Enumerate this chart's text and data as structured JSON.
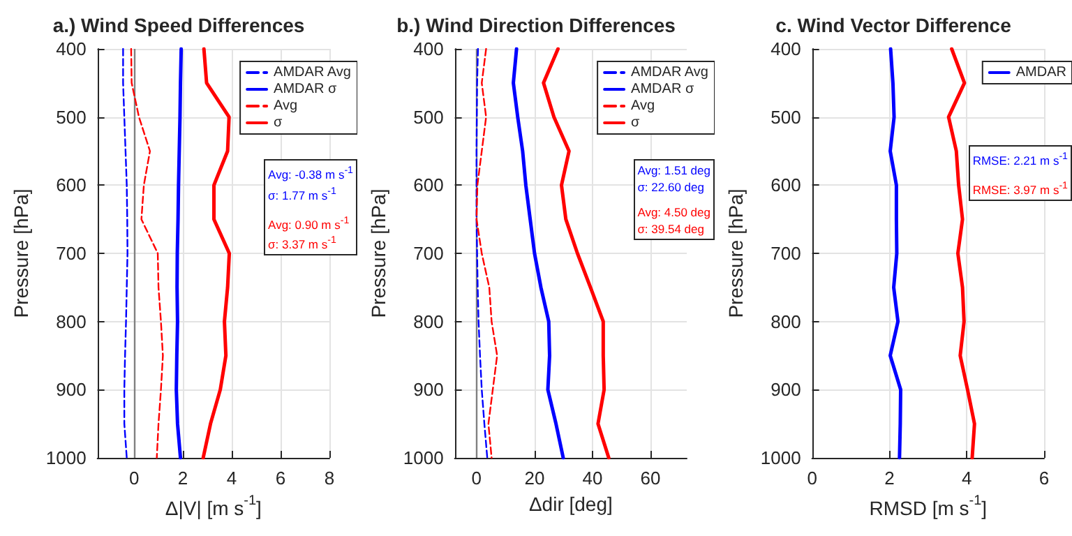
{
  "chart_data": [
    {
      "type": "line",
      "title": "a.) Wind Speed Differences",
      "xlabel": "Δ|V| [m s$^{-1}$]",
      "ylabel": "Pressure [hPa]",
      "xlim": [
        -1.5,
        8
      ],
      "xticks": [
        0,
        2,
        4,
        6,
        8
      ],
      "ylim": [
        1000,
        400
      ],
      "yticks": [
        400,
        500,
        600,
        700,
        800,
        900,
        1000
      ],
      "grid": true,
      "legend": "top right",
      "marker": "none",
      "ref_lines": [
        {
          "axis": "x",
          "value": 0,
          "color": "#808080"
        }
      ],
      "annotations": [
        "Avg: -0.38 m s$^{-1}$",
        "σ: 1.77 m s$^{-1}$",
        "Avg: 0.90 m s$^{-1}$",
        "σ: 3.37 m s$^{-1}$"
      ],
      "series": [
        {
          "name": "AMDAR Avg",
          "color": "#0000ff",
          "line_style": "dashed",
          "x": [
            -0.45,
            -0.45,
            -0.4,
            -0.35,
            -0.3,
            -0.28,
            -0.27,
            -0.3,
            -0.33,
            -0.37,
            -0.4,
            -0.4,
            -0.3
          ],
          "values": [
            400,
            450,
            500,
            550,
            600,
            650,
            700,
            750,
            800,
            850,
            900,
            950,
            1000
          ]
        },
        {
          "name": "AMDAR σ",
          "color": "#0000ff",
          "line_style": "solid",
          "x": [
            1.93,
            1.9,
            1.88,
            1.85,
            1.82,
            1.8,
            1.77,
            1.76,
            1.78,
            1.75,
            1.73,
            1.78,
            1.9
          ],
          "values": [
            400,
            450,
            500,
            550,
            600,
            650,
            700,
            750,
            800,
            850,
            900,
            950,
            1000
          ]
        },
        {
          "name": "Avg",
          "color": "#ff0000",
          "line_style": "dashed",
          "x": [
            -0.12,
            -0.1,
            0.2,
            0.65,
            0.4,
            0.3,
            0.97,
            1.0,
            1.1,
            1.18,
            1.1,
            1.0,
            0.93
          ],
          "values": [
            400,
            450,
            500,
            550,
            600,
            650,
            700,
            750,
            800,
            850,
            900,
            950,
            1000
          ]
        },
        {
          "name": "σ",
          "color": "#ff0000",
          "line_style": "solid",
          "x": [
            2.86,
            2.97,
            3.89,
            3.83,
            3.27,
            3.27,
            3.9,
            3.83,
            3.7,
            3.76,
            3.53,
            3.13,
            2.83
          ],
          "values": [
            400,
            450,
            500,
            550,
            600,
            650,
            700,
            750,
            800,
            850,
            900,
            950,
            1000
          ]
        }
      ]
    },
    {
      "type": "line",
      "title": "b.) Wind Direction Differences",
      "xlabel": "Δdir [deg]",
      "ylabel": "Pressure [hPa]",
      "xlim": [
        -7.5,
        72.5
      ],
      "xticks": [
        0,
        20,
        40,
        60
      ],
      "ylim": [
        1000,
        400
      ],
      "yticks": [
        400,
        500,
        600,
        700,
        800,
        900,
        1000
      ],
      "grid": true,
      "legend": "top right",
      "marker": "none",
      "ref_lines": [
        {
          "axis": "x",
          "value": 0,
          "color": "#808080"
        }
      ],
      "annotations": [
        "Avg: 1.51 deg",
        "σ: 22.60 deg",
        "Avg: 4.50 deg",
        "σ: 39.54 deg"
      ],
      "series": [
        {
          "name": "AMDAR Avg",
          "color": "#0000ff",
          "line_style": "dashed",
          "x": [
            0.5,
            0.2,
            0.1,
            0,
            0,
            0,
            0.2,
            0.4,
            0.7,
            1.2,
            1.8,
            2.7,
            3.7
          ],
          "values": [
            400,
            450,
            500,
            550,
            600,
            650,
            700,
            750,
            800,
            850,
            900,
            950,
            1000
          ]
        },
        {
          "name": "AMDAR σ",
          "color": "#0000ff",
          "line_style": "solid",
          "x": [
            13.8,
            12.7,
            14.2,
            15.9,
            17,
            18.5,
            20,
            22.2,
            24.9,
            25.2,
            24.6,
            27.4,
            29.9
          ],
          "values": [
            400,
            450,
            500,
            550,
            600,
            650,
            700,
            750,
            800,
            850,
            900,
            950,
            1000
          ]
        },
        {
          "name": "Avg",
          "color": "#ff0000",
          "line_style": "dashed",
          "x": [
            3.3,
            1.8,
            3.3,
            1.8,
            0.3,
            0,
            1.8,
            4.4,
            5.2,
            7.1,
            5.6,
            4.1,
            5.2
          ],
          "values": [
            400,
            450,
            500,
            550,
            600,
            650,
            700,
            750,
            800,
            850,
            900,
            950,
            1000
          ]
        },
        {
          "name": "σ",
          "color": "#ff0000",
          "line_style": "solid",
          "x": [
            28.1,
            23.1,
            26.7,
            31.9,
            29.3,
            30.8,
            34.8,
            39.3,
            43.7,
            43.7,
            44,
            41.9,
            45.6
          ],
          "values": [
            400,
            450,
            500,
            550,
            600,
            650,
            700,
            750,
            800,
            850,
            900,
            950,
            1000
          ]
        }
      ]
    },
    {
      "type": "line",
      "title": "c. Wind Vector Difference",
      "xlabel": "RMSD [m s$^{-1}$]",
      "ylabel": "Pressure [hPa]",
      "xlim": [
        0,
        6
      ],
      "xticks": [
        0,
        2,
        4,
        6
      ],
      "ylim": [
        1000,
        400
      ],
      "yticks": [
        400,
        500,
        600,
        700,
        800,
        900,
        1000
      ],
      "grid": true,
      "legend": "top right",
      "marker": "none",
      "annotations": [
        "RMSE: 2.21 m s$^{-1}$",
        "RMSE: 3.97 m s$^{-1}$"
      ],
      "series": [
        {
          "name": "AMDAR",
          "color": "#0000ff",
          "line_style": "solid",
          "x": [
            2.03,
            2.09,
            2.12,
            2.02,
            2.18,
            2.18,
            2.19,
            2.11,
            2.22,
            2.02,
            2.29,
            2.28,
            2.26
          ],
          "values": [
            400,
            450,
            500,
            550,
            600,
            650,
            700,
            750,
            800,
            850,
            900,
            950,
            1000
          ]
        },
        {
          "color": "#ff0000",
          "line_style": "solid",
          "x": [
            3.61,
            3.94,
            3.53,
            3.73,
            3.79,
            3.89,
            3.77,
            3.89,
            3.93,
            3.83,
            4.02,
            4.2,
            4.14
          ],
          "values": [
            400,
            450,
            500,
            550,
            600,
            650,
            700,
            750,
            800,
            850,
            900,
            950,
            1000
          ]
        }
      ]
    }
  ]
}
